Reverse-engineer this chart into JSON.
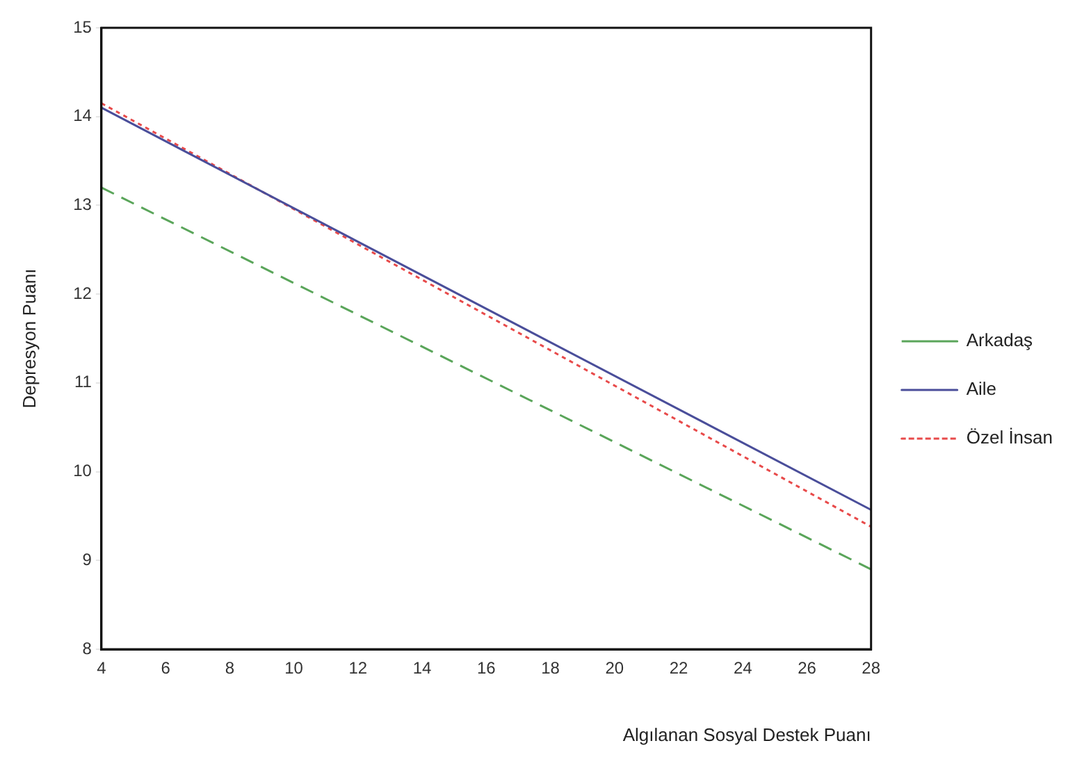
{
  "chart_data": {
    "type": "line",
    "xlabel": "Algılanan Sosyal Destek Puanı",
    "ylabel": "Depresyon Puanı",
    "x": [
      4,
      28
    ],
    "series": [
      {
        "name": "Arkadaş",
        "color": "#5aa55a",
        "values": [
          13.2,
          8.9
        ],
        "line_style": "dashed"
      },
      {
        "name": "Aile",
        "color": "#4a4e9a",
        "values": [
          14.1,
          9.57
        ],
        "line_style": "solid"
      },
      {
        "name": "Özel İnsan",
        "color": "#e84a4a",
        "values": [
          14.15,
          9.38
        ],
        "line_style": "dotted"
      }
    ],
    "xlim": [
      4,
      28
    ],
    "xticks": [
      4,
      6,
      8,
      10,
      12,
      14,
      16,
      18,
      20,
      22,
      24,
      26,
      28
    ],
    "ylim": [
      8,
      15
    ],
    "yticks": [
      8,
      9,
      10,
      11,
      12,
      13,
      14,
      15
    ],
    "grid": false,
    "legend": "right",
    "marker": "none"
  }
}
